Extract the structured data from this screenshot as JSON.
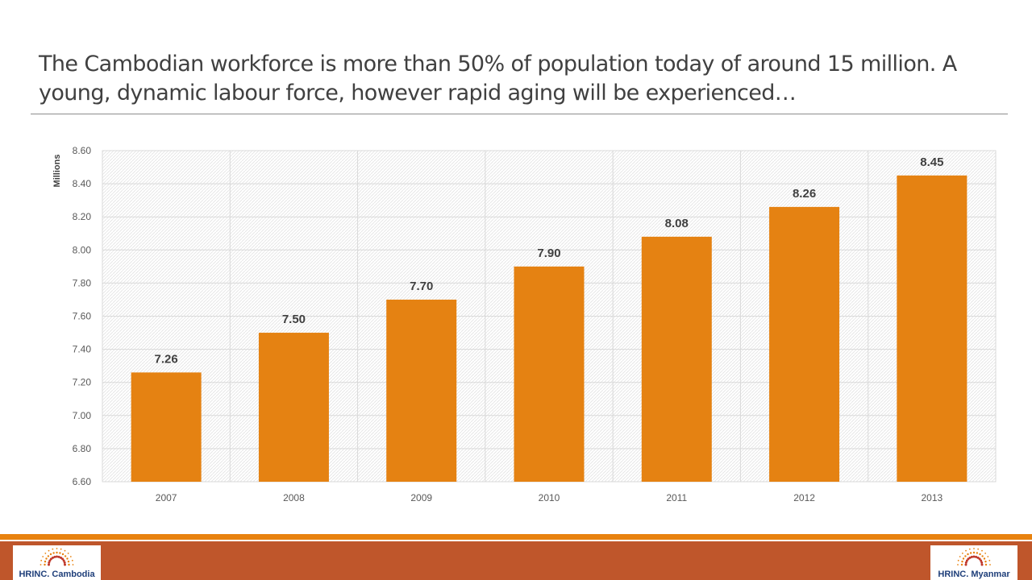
{
  "slide": {
    "title": "The Cambodian workforce is more than 50% of population today of around 15 million.  A young, dynamic labour force, however rapid aging will be experienced…"
  },
  "colors": {
    "bar": "#e58212",
    "footer_line": "#e8820f",
    "footer_band": "#bf562b",
    "logo_text": "#1f3f7a"
  },
  "chart_data": {
    "type": "bar",
    "categories": [
      "2007",
      "2008",
      "2009",
      "2010",
      "2011",
      "2012",
      "2013"
    ],
    "values": [
      7.26,
      7.5,
      7.7,
      7.9,
      8.08,
      8.26,
      8.45
    ],
    "data_labels": [
      "7.26",
      "7.50",
      "7.70",
      "7.90",
      "8.08",
      "8.26",
      "8.45"
    ],
    "ylabel": "Millions",
    "ylim": [
      6.6,
      8.6
    ],
    "yticks": [
      "6.60",
      "6.80",
      "7.00",
      "7.20",
      "7.40",
      "7.60",
      "7.80",
      "8.00",
      "8.20",
      "8.40",
      "8.60"
    ],
    "grid": true,
    "legend": "none"
  },
  "logos": {
    "left": {
      "text": "HRINC. Cambodia",
      "icon": "sunburst-logo-icon"
    },
    "right": {
      "text": "HRINC. Myanmar",
      "icon": "sunburst-logo-icon"
    }
  }
}
